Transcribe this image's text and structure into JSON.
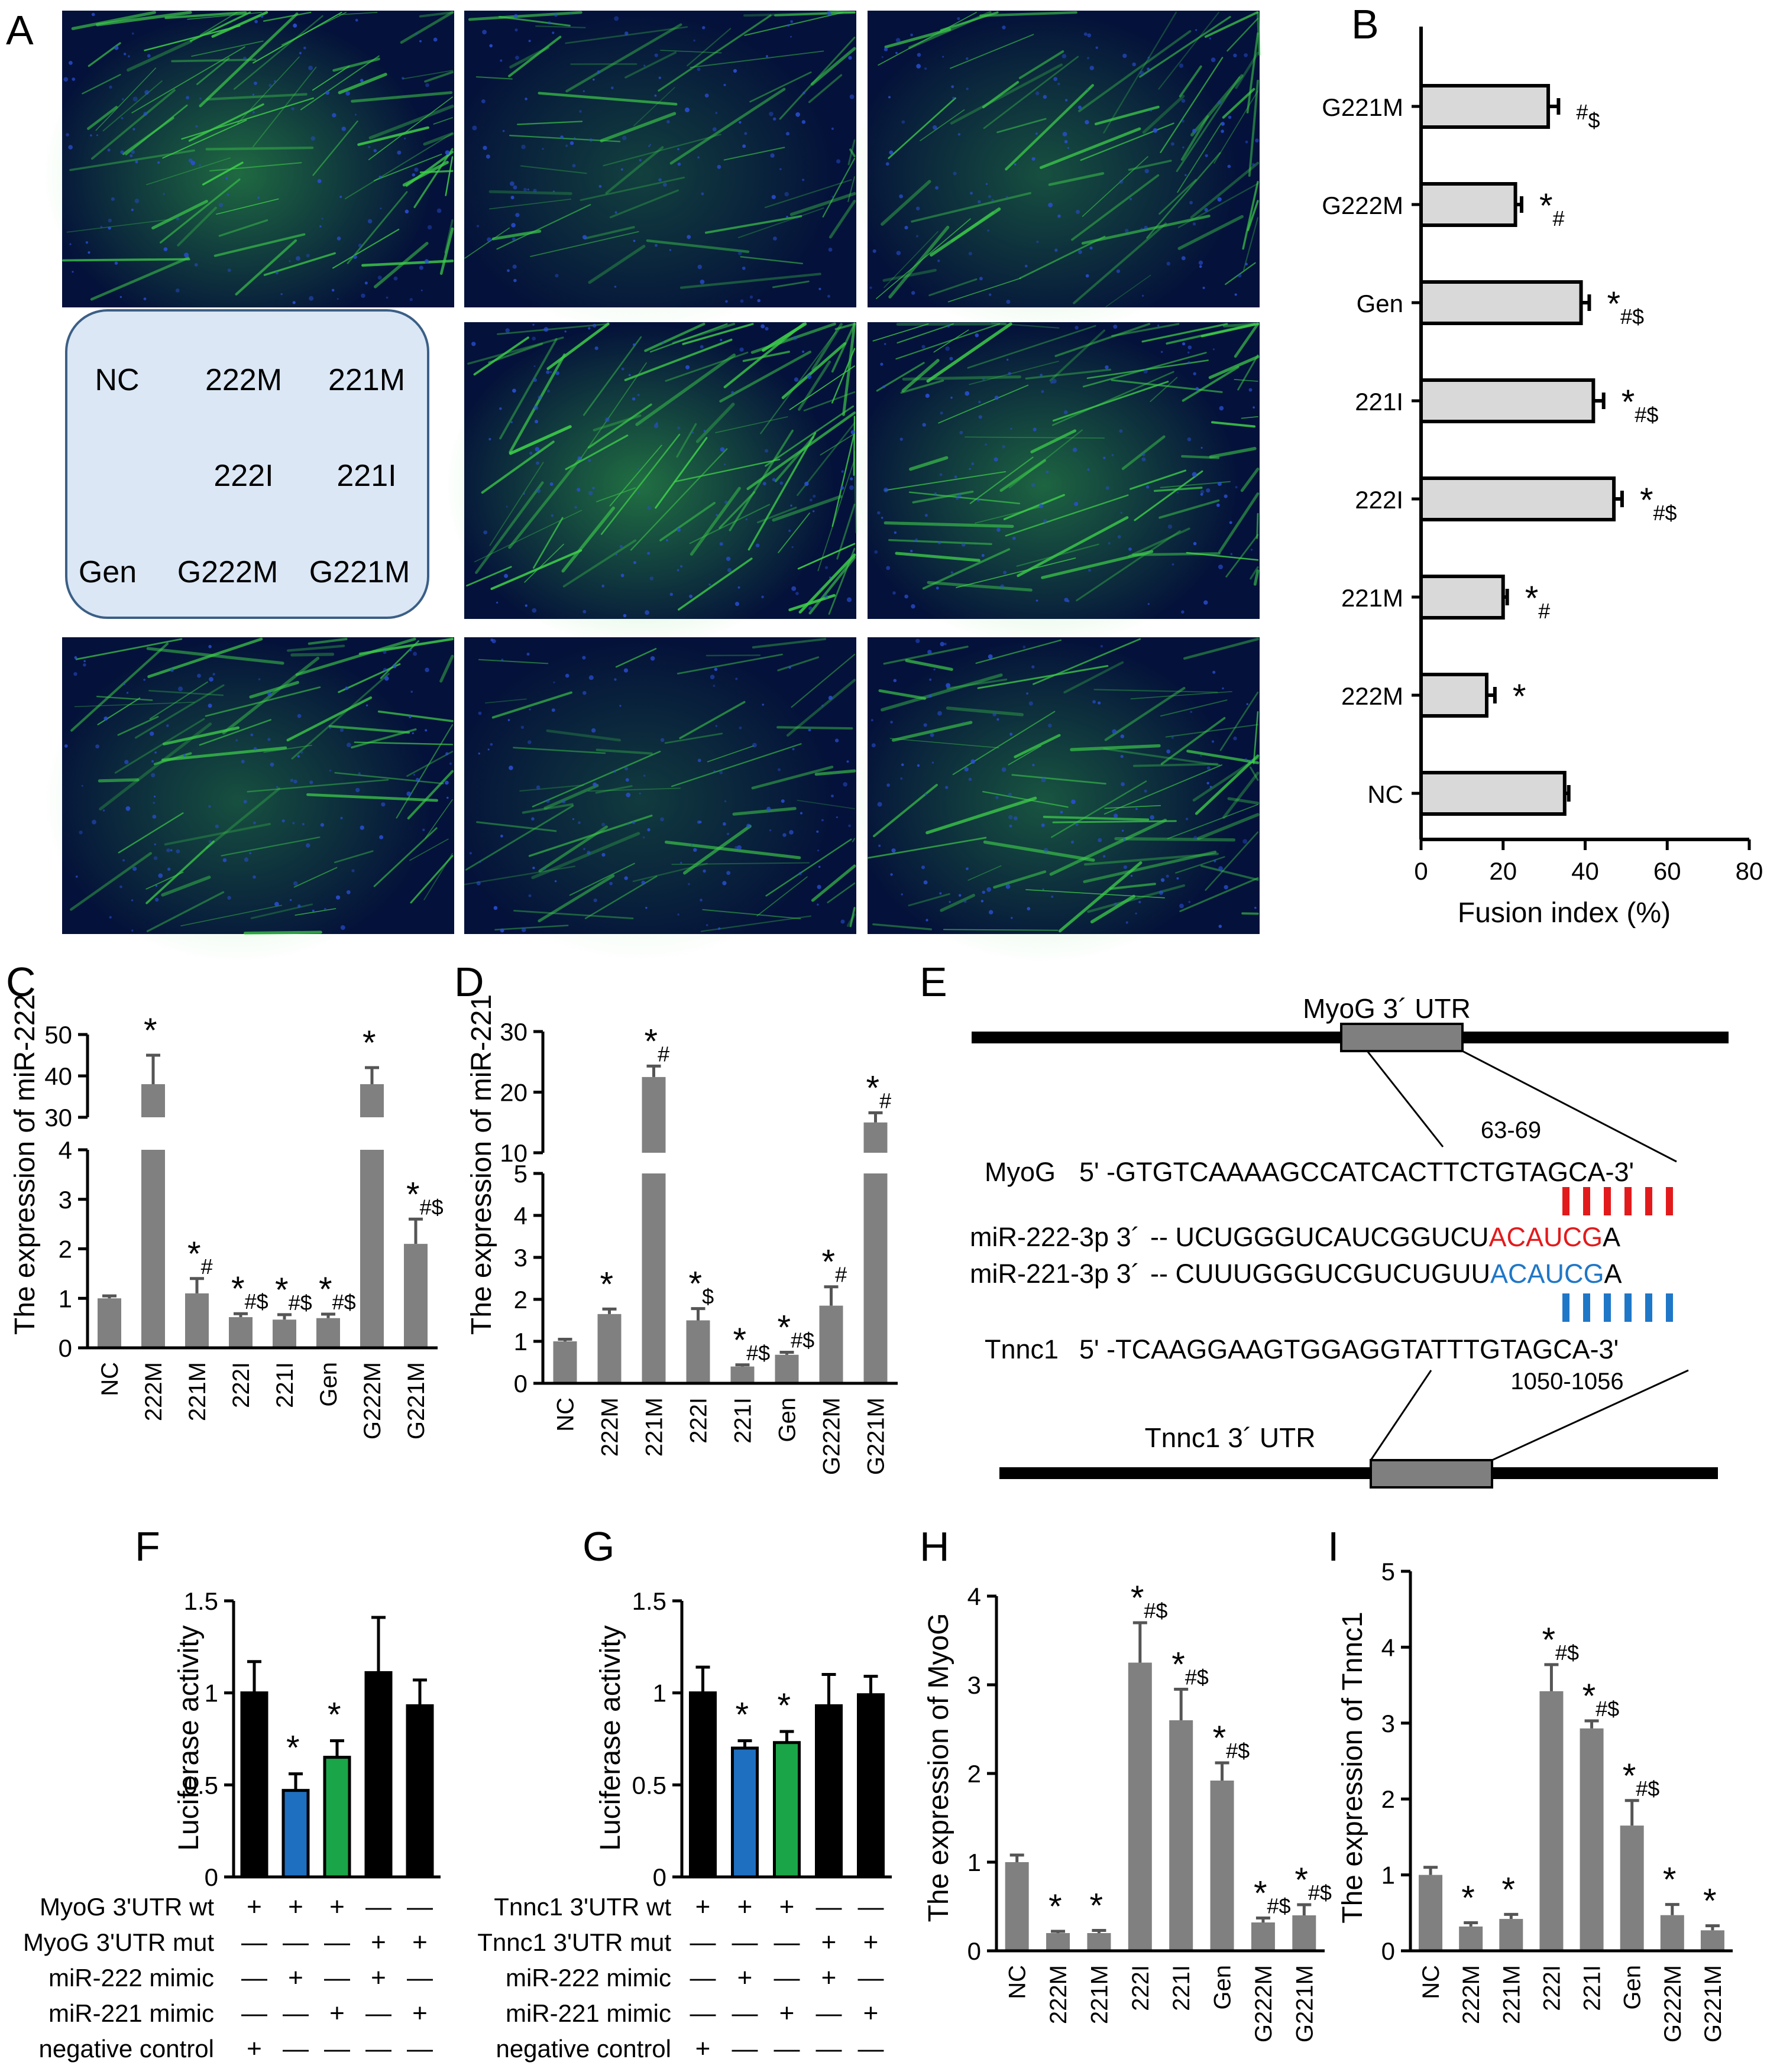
{
  "panel_labels": [
    "A",
    "B",
    "C",
    "D",
    "E",
    "F",
    "G",
    "H",
    "I"
  ],
  "colors": {
    "bar_gray": "#808080",
    "bar_light": "#d9d9d9",
    "bar_black": "#000000",
    "bar_blue": "#1f6fc1",
    "bar_green": "#1aa548",
    "pair_red": "#e31a1c",
    "pair_blue": "#1f77c8",
    "legend_box": "#dbe7f5",
    "micro_bg": "#04113a",
    "micro_green": "#3ecf4a",
    "micro_blue": "#2a4fd8"
  },
  "panel_a": {
    "legend_rows": [
      [
        "NC",
        "222M",
        "221M"
      ],
      [
        "",
        "222I",
        "221I"
      ],
      [
        "Gen",
        "G222M",
        "G221M"
      ]
    ],
    "image_brightness": [
      0.85,
      0.45,
      0.6,
      0.9,
      0.8,
      0.6,
      0.4,
      0.65
    ]
  },
  "chart_data": [
    {
      "id": "B",
      "type": "bar",
      "orientation": "horizontal",
      "categories": [
        "G221M",
        "G222M",
        "Gen",
        "221I",
        "222I",
        "221M",
        "222M",
        "NC"
      ],
      "values": [
        31,
        23,
        39,
        42,
        47,
        20,
        16,
        35
      ],
      "errors": [
        2.5,
        1.5,
        2,
        2.5,
        2,
        1,
        2,
        1
      ],
      "annotations": [
        "#$",
        "*#",
        "*#$",
        "*#$",
        "*#$",
        "*#",
        "*",
        ""
      ],
      "xlabel": "Fusion index (%)",
      "xlim": [
        0,
        80
      ],
      "xticks": [
        "0",
        "20",
        "40",
        "60",
        "80"
      ]
    },
    {
      "id": "C",
      "type": "bar",
      "categories": [
        "NC",
        "222M",
        "221M",
        "222I",
        "221I",
        "Gen",
        "G222M",
        "G221M"
      ],
      "values": [
        1.0,
        38,
        1.1,
        0.62,
        0.57,
        0.6,
        38,
        2.1
      ],
      "errors": [
        0.05,
        7,
        0.3,
        0.07,
        0.1,
        0.08,
        4,
        0.5
      ],
      "annotations": [
        "",
        "*",
        "*#",
        "*#$",
        "*#$",
        "*#$",
        "*",
        "*#$"
      ],
      "ylabel": "The expression of miR-222",
      "axis_break": {
        "lower": [
          0,
          4
        ],
        "upper": [
          30,
          50
        ]
      },
      "yticks_lower": [
        "0",
        "1",
        "2",
        "3",
        "4"
      ],
      "yticks_upper": [
        "30",
        "40",
        "50"
      ]
    },
    {
      "id": "D",
      "type": "bar",
      "categories": [
        "NC",
        "222M",
        "221M",
        "222I",
        "221I",
        "Gen",
        "G222M",
        "G221M"
      ],
      "values": [
        1.0,
        1.65,
        22.5,
        1.5,
        0.4,
        0.68,
        1.85,
        15
      ],
      "errors": [
        0.05,
        0.12,
        1.8,
        0.28,
        0.04,
        0.06,
        0.45,
        1.6
      ],
      "annotations": [
        "",
        "*",
        "*#",
        "*$",
        "*#$",
        "*#$",
        "*#",
        "*#"
      ],
      "ylabel": "The expression of miR-221",
      "axis_break": {
        "lower": [
          0,
          5
        ],
        "upper": [
          10,
          30
        ]
      },
      "yticks_lower": [
        "0",
        "1",
        "2",
        "3",
        "4",
        "5"
      ],
      "yticks_upper": [
        "10",
        "20",
        "30"
      ]
    },
    {
      "id": "F",
      "type": "bar",
      "values": [
        1.0,
        0.47,
        0.65,
        1.11,
        0.93
      ],
      "errors": [
        0.17,
        0.09,
        0.09,
        0.3,
        0.14
      ],
      "bar_colors": [
        "#000000",
        "#1f6fc1",
        "#1aa548",
        "#000000",
        "#000000"
      ],
      "annotations": [
        "",
        "*",
        "*",
        "",
        ""
      ],
      "ylabel": "Luciferase activity",
      "ylim": [
        0,
        1.5
      ],
      "yticks": [
        "0",
        "0.5",
        "1",
        "1.5"
      ],
      "conditions": [
        {
          "label": "MyoG  3'UTR wt",
          "marks": [
            "+",
            "+",
            "+",
            "—",
            "—"
          ]
        },
        {
          "label": "MyoG 3'UTR mut",
          "marks": [
            "—",
            "—",
            "—",
            "+",
            "+"
          ]
        },
        {
          "label": "miR-222 mimic",
          "marks": [
            "—",
            "+",
            "—",
            "+",
            "—"
          ]
        },
        {
          "label": "miR-221 mimic",
          "marks": [
            "—",
            "—",
            "+",
            "—",
            "+"
          ]
        },
        {
          "label": "negative control",
          "marks": [
            "+",
            "—",
            "—",
            "—",
            "—"
          ]
        }
      ]
    },
    {
      "id": "G",
      "type": "bar",
      "values": [
        1.0,
        0.7,
        0.73,
        0.93,
        0.99
      ],
      "errors": [
        0.14,
        0.04,
        0.06,
        0.17,
        0.1
      ],
      "bar_colors": [
        "#000000",
        "#1f6fc1",
        "#1aa548",
        "#000000",
        "#000000"
      ],
      "annotations": [
        "",
        "*",
        "*",
        "",
        ""
      ],
      "ylabel": "Luciferase activity",
      "ylim": [
        0,
        1.5
      ],
      "yticks": [
        "0",
        "0.5",
        "1",
        "1.5"
      ],
      "conditions": [
        {
          "label": "Tnnc1  3'UTR wt",
          "marks": [
            "+",
            "+",
            "+",
            "—",
            "—"
          ]
        },
        {
          "label": "Tnnc1 3'UTR mut",
          "marks": [
            "—",
            "—",
            "—",
            "+",
            "+"
          ]
        },
        {
          "label": "miR-222 mimic",
          "marks": [
            "—",
            "+",
            "—",
            "+",
            "—"
          ]
        },
        {
          "label": "miR-221 mimic",
          "marks": [
            "—",
            "—",
            "+",
            "—",
            "+"
          ]
        },
        {
          "label": "negative control",
          "marks": [
            "+",
            "—",
            "—",
            "—",
            "—"
          ]
        }
      ]
    },
    {
      "id": "H",
      "type": "bar",
      "categories": [
        "NC",
        "222M",
        "221M",
        "222I",
        "221I",
        "Gen",
        "G222M",
        "G221M"
      ],
      "values": [
        1.0,
        0.2,
        0.2,
        3.25,
        2.6,
        1.92,
        0.32,
        0.4
      ],
      "errors": [
        0.08,
        0.02,
        0.03,
        0.45,
        0.35,
        0.2,
        0.05,
        0.12
      ],
      "annotations": [
        "",
        "*",
        "*",
        "*#$",
        "*#$",
        "*#$",
        "*#$",
        "*#$"
      ],
      "ylabel": "The expression of MyoG",
      "ylim": [
        0,
        4
      ],
      "yticks": [
        "0",
        "1",
        "2",
        "3",
        "4"
      ]
    },
    {
      "id": "I",
      "type": "bar",
      "categories": [
        "NC",
        "222M",
        "221M",
        "222I",
        "221I",
        "Gen",
        "G222M",
        "G221M"
      ],
      "values": [
        1.0,
        0.32,
        0.42,
        3.42,
        2.93,
        1.65,
        0.47,
        0.27
      ],
      "errors": [
        0.1,
        0.05,
        0.06,
        0.35,
        0.1,
        0.33,
        0.14,
        0.06
      ],
      "annotations": [
        "",
        "*",
        "*",
        "*#$",
        "*#$",
        "*#$",
        "*",
        "*"
      ],
      "ylabel": "The expression of Tnnc1",
      "ylim": [
        0,
        5
      ],
      "yticks": [
        "0",
        "1",
        "2",
        "3",
        "4",
        "5"
      ]
    }
  ],
  "panel_e": {
    "myog_utr_label": "MyoG 3´ UTR",
    "myog_site": "63-69",
    "myog_seq_name": "MyoG",
    "myog_seq": "5' -GTGTCAAAAGCCATCACTTCTGTAGCA-3'",
    "mir222_name": "miR-222-3p 3´",
    "mir222_seq_plain": "-- UCUGGGUCAUCGGUCU",
    "mir222_seq_seed": "ACAUCG",
    "mir222_seq_tail": "A",
    "mir221_name": "miR-221-3p 3´",
    "mir221_seq_plain": "-- CUUUGGGUCGUCUGUU",
    "mir221_seq_seed": "ACAUCG",
    "mir221_seq_tail": "A",
    "tnnc1_seq_name": "Tnnc1",
    "tnnc1_seq": "5' -TCAAGGAAGTGGAGGTATTTGTAGCA-3'",
    "tnnc1_site": "1050-1056",
    "tnnc1_utr_label": "Tnnc1 3´ UTR"
  }
}
